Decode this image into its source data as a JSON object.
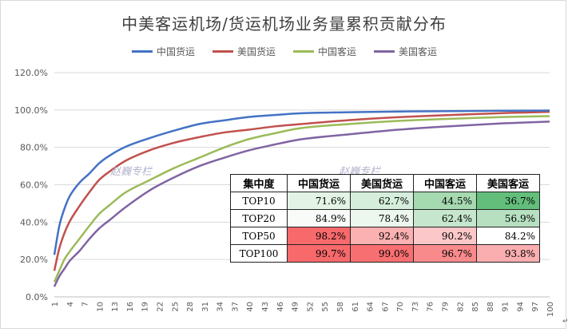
{
  "title": "中美客运机场/货运机场业务量累积贡献分布",
  "watermarks": [
    "赵巍专栏",
    "赵巍专栏"
  ],
  "table": {
    "headers": [
      "集中度",
      "中国货运",
      "美国货运",
      "中国客运",
      "美国客运"
    ],
    "rows": [
      {
        "label": "TOP10",
        "values": [
          "71.6%",
          "62.7%",
          "44.5%",
          "36.7%"
        ],
        "colors": [
          "#e3f4e6",
          "#d4eedb",
          "#a5d9b0",
          "#63be7b"
        ]
      },
      {
        "label": "TOP20",
        "values": [
          "84.9%",
          "78.4%",
          "62.4%",
          "56.9%"
        ],
        "colors": [
          "#f9fbf9",
          "#ecf7ee",
          "#c6e7cd",
          "#b6e0c0"
        ]
      },
      {
        "label": "TOP50",
        "values": [
          "98.2%",
          "92.4%",
          "90.2%",
          "84.2%"
        ],
        "colors": [
          "#f8696b",
          "#fbb0b1",
          "#fcc7c8",
          "#ffffff"
        ]
      },
      {
        "label": "TOP100",
        "values": [
          "99.7%",
          "99.0%",
          "96.7%",
          "93.8%"
        ],
        "colors": [
          "#f8696b",
          "#f86f71",
          "#f98a8c",
          "#fbaeaf"
        ]
      }
    ]
  },
  "chart_data": {
    "type": "line",
    "title": "中美客运机场/货运机场业务量累积贡献分布",
    "xlabel": "",
    "ylabel": "",
    "ylim": [
      0,
      120
    ],
    "yticks": [
      "0.0%",
      "20.0%",
      "40.0%",
      "60.0%",
      "80.0%",
      "100.0%",
      "120.0%"
    ],
    "xticks": [
      1,
      4,
      7,
      10,
      13,
      16,
      19,
      22,
      25,
      28,
      31,
      34,
      37,
      40,
      43,
      46,
      49,
      52,
      55,
      58,
      61,
      64,
      67,
      70,
      73,
      76,
      79,
      82,
      85,
      88,
      91,
      94,
      97,
      100
    ],
    "grid": "horizontal",
    "legend_position": "top",
    "series": [
      {
        "name": "中国货运",
        "color": "#4472c4",
        "points": [
          [
            1,
            22.5
          ],
          [
            2,
            38
          ],
          [
            3,
            47
          ],
          [
            4,
            53.5
          ],
          [
            6,
            61
          ],
          [
            8,
            66
          ],
          [
            10,
            71.6
          ],
          [
            12,
            75.5
          ],
          [
            15,
            80
          ],
          [
            20,
            84.9
          ],
          [
            25,
            89
          ],
          [
            30,
            92.5
          ],
          [
            35,
            94.5
          ],
          [
            40,
            96.3
          ],
          [
            45,
            97.3
          ],
          [
            50,
            98.2
          ],
          [
            60,
            98.8
          ],
          [
            70,
            99.2
          ],
          [
            80,
            99.4
          ],
          [
            90,
            99.6
          ],
          [
            100,
            99.7
          ]
        ]
      },
      {
        "name": "美国货运",
        "color": "#c0504d",
        "points": [
          [
            1,
            14
          ],
          [
            2,
            26
          ],
          [
            3,
            34
          ],
          [
            4,
            40
          ],
          [
            6,
            48.5
          ],
          [
            8,
            56
          ],
          [
            10,
            62.7
          ],
          [
            12,
            67
          ],
          [
            15,
            72.5
          ],
          [
            20,
            78.4
          ],
          [
            25,
            82.5
          ],
          [
            30,
            85.5
          ],
          [
            35,
            88
          ],
          [
            40,
            89.5
          ],
          [
            45,
            91.2
          ],
          [
            50,
            92.4
          ],
          [
            60,
            94.6
          ],
          [
            70,
            96.2
          ],
          [
            80,
            97.3
          ],
          [
            90,
            98.3
          ],
          [
            100,
            99.0
          ]
        ]
      },
      {
        "name": "中国客运",
        "color": "#9bbb59",
        "points": [
          [
            1,
            8
          ],
          [
            2,
            14
          ],
          [
            3,
            20
          ],
          [
            4,
            24
          ],
          [
            6,
            31
          ],
          [
            8,
            38
          ],
          [
            10,
            44.5
          ],
          [
            12,
            49
          ],
          [
            15,
            55.5
          ],
          [
            20,
            62.4
          ],
          [
            25,
            69
          ],
          [
            30,
            74.5
          ],
          [
            35,
            80
          ],
          [
            40,
            84.5
          ],
          [
            45,
            87.5
          ],
          [
            50,
            90.2
          ],
          [
            60,
            92.5
          ],
          [
            70,
            94.2
          ],
          [
            80,
            95.3
          ],
          [
            90,
            96.2
          ],
          [
            100,
            96.7
          ]
        ]
      },
      {
        "name": "美国客运",
        "color": "#8064a2",
        "points": [
          [
            1,
            5.5
          ],
          [
            2,
            11
          ],
          [
            3,
            15
          ],
          [
            4,
            19
          ],
          [
            6,
            24.5
          ],
          [
            8,
            31
          ],
          [
            10,
            36.7
          ],
          [
            12,
            41
          ],
          [
            15,
            47.5
          ],
          [
            20,
            56.9
          ],
          [
            25,
            64
          ],
          [
            30,
            70
          ],
          [
            35,
            74.5
          ],
          [
            40,
            78.5
          ],
          [
            45,
            81.5
          ],
          [
            50,
            84.2
          ],
          [
            60,
            87
          ],
          [
            70,
            89.5
          ],
          [
            80,
            91.3
          ],
          [
            90,
            92.8
          ],
          [
            100,
            93.8
          ]
        ]
      }
    ]
  }
}
